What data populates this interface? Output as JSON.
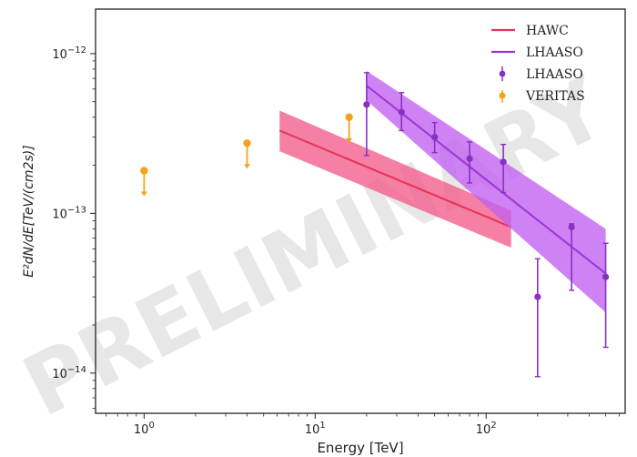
{
  "chart_data": {
    "type": "scatter",
    "title": "",
    "xlabel": "Energy [TeV]",
    "ylabel": "E²dN/dE[TeV/(cm2s)]",
    "xscale": "log",
    "yscale": "log",
    "xlim": [
      0.52,
      650
    ],
    "ylim": [
      5.6e-15,
      1.9e-12
    ],
    "grid": false,
    "legend_position": "top-right",
    "watermark": "PRELIMINARY",
    "x_ticks": [
      {
        "base": "10",
        "exp": "0",
        "value": 1
      },
      {
        "base": "10",
        "exp": "1",
        "value": 10
      },
      {
        "base": "10",
        "exp": "2",
        "value": 100
      }
    ],
    "y_ticks": [
      {
        "base": "10",
        "exp": "−14",
        "value": 1e-14
      },
      {
        "base": "10",
        "exp": "−13",
        "value": 1e-13
      },
      {
        "base": "10",
        "exp": "−12",
        "value": 1e-12
      }
    ],
    "series": [
      {
        "name": "HAWC",
        "kind": "band",
        "color": "#e8325a",
        "band_color": "#f25c8a",
        "x": [
          6.2,
          140
        ],
        "y": [
          3.3e-13,
          8.2e-14
        ],
        "y_low": [
          2.45e-13,
          6.1e-14
        ],
        "y_high": [
          4.4e-13,
          1.04e-13
        ]
      },
      {
        "name": "LHAASO",
        "kind": "band",
        "color": "#9a36d6",
        "band_color": "#c15ff0",
        "x": [
          20,
          500
        ],
        "y": [
          6.3e-13,
          4.2e-14
        ],
        "y_low": [
          5.1e-13,
          2.4e-14
        ],
        "y_high": [
          7.8e-13,
          8e-14
        ]
      },
      {
        "name": "LHAASO",
        "kind": "errorbar",
        "color": "#8a2fc4",
        "points": [
          {
            "x": 20,
            "y": 4.8e-13,
            "y_low": 2.3e-13,
            "y_high": 7.6e-13
          },
          {
            "x": 32,
            "y": 4.3e-13,
            "y_low": 3.3e-13,
            "y_high": 5.7e-13
          },
          {
            "x": 50,
            "y": 3e-13,
            "y_low": 2.4e-13,
            "y_high": 3.7e-13
          },
          {
            "x": 80,
            "y": 2.2e-13,
            "y_low": 1.55e-13,
            "y_high": 2.8e-13
          },
          {
            "x": 126,
            "y": 2.1e-13,
            "y_low": 1.35e-13,
            "y_high": 2.7e-13
          },
          {
            "x": 200,
            "y": 3e-14,
            "y_low": 9.5e-15,
            "y_high": 5.2e-14
          },
          {
            "x": 316,
            "y": 8.2e-14,
            "y_low": 3.3e-14,
            "y_high": 8.6e-14
          },
          {
            "x": 500,
            "y": 4e-14,
            "y_low": 1.45e-14,
            "y_high": 6.5e-14
          }
        ]
      },
      {
        "name": "VERITAS",
        "kind": "upper_limit",
        "color": "#f5a21b",
        "points": [
          {
            "x": 1.0,
            "y": 1.85e-13
          },
          {
            "x": 4.0,
            "y": 2.75e-13
          },
          {
            "x": 15.8,
            "y": 4e-13
          }
        ]
      }
    ]
  }
}
